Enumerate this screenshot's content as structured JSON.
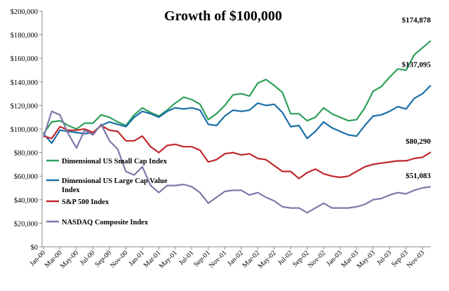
{
  "chart_data": {
    "type": "line",
    "title": "Growth of $100,000",
    "xlabel": "",
    "ylabel": "",
    "ylim": [
      0,
      200000
    ],
    "yticks": [
      0,
      20000,
      40000,
      60000,
      80000,
      100000,
      120000,
      140000,
      160000,
      180000,
      200000
    ],
    "ytick_labels": [
      "$0",
      "$20,000",
      "$40,000",
      "$60,000",
      "$80,000",
      "$100,000",
      "$120,000",
      "$140,000",
      "$160,000",
      "$180,000",
      "$200,000"
    ],
    "x_tick_labels": [
      "Jan-00",
      "Mar-00",
      "May-00",
      "Jul-00",
      "Sep-00",
      "Nov-00",
      "Jan-01",
      "Mar-01",
      "May-01",
      "Jul-01",
      "Sep-01",
      "Nov-01",
      "Jan-02",
      "Mar-02",
      "May-02",
      "Jul-02",
      "Sep-02",
      "Nov-02",
      "Jan-03",
      "Mar-03",
      "May-03",
      "Jul-03",
      "Sep-03",
      "Nov-03"
    ],
    "x_tick_step_months": 2,
    "n_months": 48,
    "grid": false,
    "legend_position": "center-left",
    "series": [
      {
        "name": "Dimensional US Small Cap Index",
        "color": "#2EA05A",
        "end_label": "$174,878",
        "values": [
          96000,
          106000,
          107000,
          103000,
          100000,
          105000,
          105000,
          112000,
          110000,
          106000,
          103000,
          112000,
          118000,
          114000,
          111000,
          116000,
          122000,
          127000,
          125000,
          121000,
          108000,
          113000,
          120000,
          129000,
          130000,
          128000,
          139000,
          142000,
          137000,
          131000,
          113000,
          113000,
          107000,
          110000,
          118000,
          113000,
          110000,
          107000,
          108000,
          118000,
          132000,
          136000,
          144000,
          151000,
          150000,
          163000,
          169000,
          174878
        ]
      },
      {
        "name": "Dimensional US Large Cap Value Index",
        "color": "#1B6FA8",
        "end_label": "$137,095",
        "values": [
          96000,
          88000,
          99000,
          98000,
          97000,
          96000,
          97000,
          103000,
          106000,
          104000,
          102000,
          110000,
          115000,
          113000,
          110000,
          115000,
          118000,
          117000,
          118000,
          116000,
          104000,
          103000,
          111000,
          116000,
          115000,
          116000,
          122000,
          120000,
          121000,
          114000,
          102000,
          103000,
          92000,
          98000,
          106000,
          101000,
          98000,
          95000,
          94000,
          103000,
          111000,
          112000,
          115000,
          119000,
          117000,
          126000,
          130000,
          137095
        ]
      },
      {
        "name": "S&P 500 Index",
        "color": "#C0272D",
        "end_label": "$80,290",
        "values": [
          94000,
          92000,
          102000,
          99000,
          99000,
          100000,
          97000,
          103000,
          99000,
          98000,
          90000,
          90000,
          94000,
          85000,
          80000,
          86000,
          87000,
          85000,
          85000,
          82000,
          72000,
          74000,
          79000,
          80000,
          78000,
          79000,
          75000,
          74000,
          69000,
          64000,
          64000,
          58000,
          63000,
          66000,
          62000,
          60000,
          59000,
          60000,
          64000,
          68000,
          70000,
          71000,
          72000,
          73000,
          73000,
          75000,
          76000,
          80290
        ]
      },
      {
        "name": "NASDAQ Composite Index",
        "color": "#7F78A8",
        "end_label": "$51,083",
        "values": [
          93000,
          115000,
          112000,
          96000,
          84000,
          99000,
          95000,
          104000,
          90000,
          83000,
          64000,
          61000,
          68000,
          52000,
          46000,
          52000,
          52000,
          53000,
          51000,
          46000,
          37000,
          42000,
          47000,
          48000,
          48000,
          44000,
          46000,
          42000,
          39000,
          34000,
          33000,
          33000,
          29000,
          33000,
          37000,
          33000,
          33000,
          33000,
          34000,
          36000,
          40000,
          41000,
          44000,
          46000,
          45000,
          48000,
          50000,
          51083
        ]
      }
    ]
  }
}
